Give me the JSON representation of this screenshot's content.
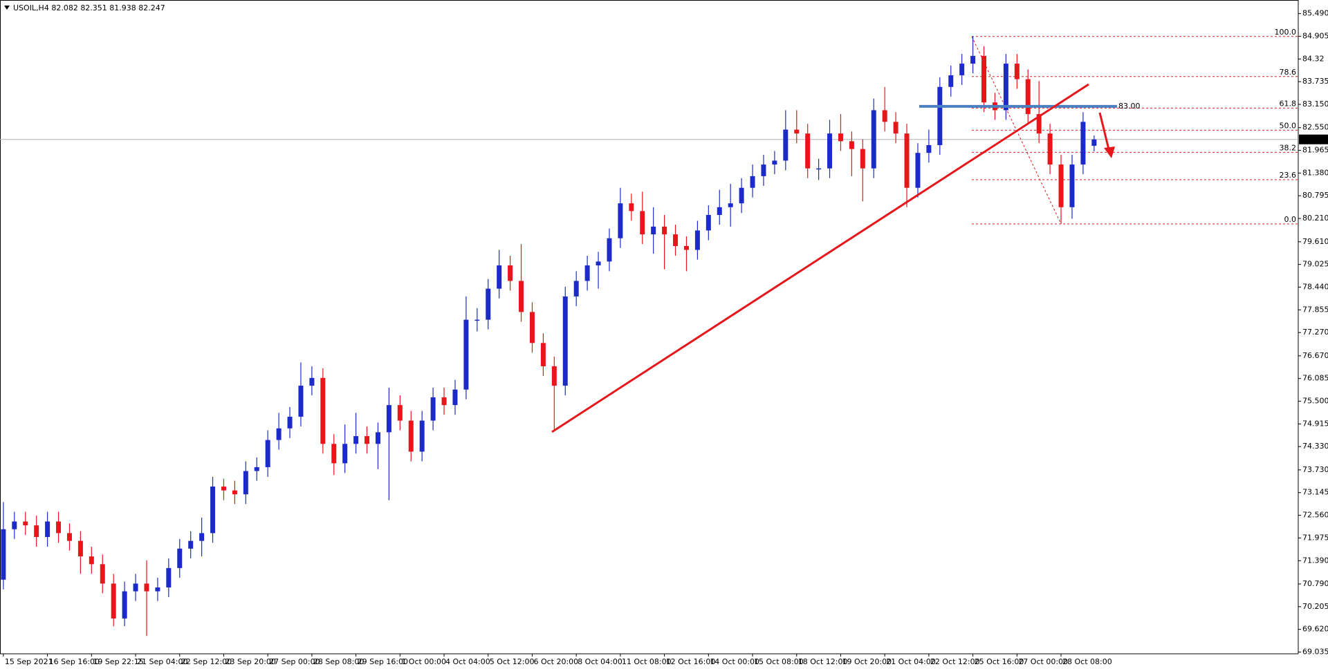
{
  "chart_data": {
    "type": "candlestick",
    "title": "USOIL,H4 82.082 82.351 81.938 82.247",
    "categories": [
      "15 Sep 2021",
      null,
      null,
      null,
      "16 Sep 16:00",
      null,
      null,
      null,
      "19 Sep 22:15",
      null,
      null,
      null,
      "21 Sep 04:00",
      null,
      null,
      null,
      "22 Sep 12:00",
      null,
      null,
      null,
      "23 Sep 20:00",
      null,
      null,
      null,
      "27 Sep 00:00",
      null,
      null,
      null,
      "28 Sep 08:00",
      null,
      null,
      null,
      "29 Sep 16:00",
      null,
      null,
      null,
      "1 Oct 00:00",
      null,
      null,
      null,
      "4 Oct 04:00",
      null,
      null,
      null,
      "5 Oct 12:00",
      null,
      null,
      null,
      "6 Oct 20:00",
      null,
      null,
      null,
      "8 Oct 04:00",
      null,
      null,
      null,
      "11 Oct 08:00",
      null,
      null,
      null,
      "12 Oct 16:00",
      null,
      null,
      null,
      "14 Oct 00:00",
      null,
      null,
      null,
      "15 Oct 08:00",
      null,
      null,
      null,
      "18 Oct 12:00",
      null,
      null,
      null,
      "19 Oct 20:00",
      null,
      null,
      null,
      "21 Oct 04:00",
      null,
      null,
      null,
      "22 Oct 12:00",
      null,
      null,
      null,
      "25 Oct 16:00",
      null,
      null,
      null,
      "27 Oct 00:00",
      null,
      null,
      null,
      "28 Oct 08:00",
      null,
      null,
      null
    ],
    "open": [
      70.9,
      72.2,
      72.4,
      72.3,
      72.0,
      72.4,
      72.1,
      71.9,
      71.5,
      71.3,
      70.8,
      69.9,
      70.6,
      70.8,
      70.6,
      70.7,
      71.2,
      71.7,
      71.9,
      72.1,
      73.3,
      73.2,
      73.1,
      73.7,
      73.8,
      74.5,
      74.8,
      75.1,
      75.9,
      76.1,
      74.4,
      73.9,
      74.4,
      74.6,
      74.4,
      74.7,
      75.4,
      75.0,
      74.2,
      75.0,
      75.6,
      75.4,
      75.8,
      77.6,
      77.6,
      78.4,
      79.0,
      78.6,
      77.8,
      77.0,
      76.4,
      75.9,
      78.2,
      78.6,
      79.0,
      79.1,
      79.7,
      80.6,
      80.4,
      79.8,
      80.0,
      79.8,
      79.5,
      79.4,
      79.9,
      80.3,
      80.5,
      80.6,
      81.0,
      81.3,
      81.6,
      81.7,
      82.5,
      82.4,
      81.5,
      81.5,
      82.4,
      82.2,
      82.0,
      81.5,
      83.0,
      82.7,
      82.4,
      81.0,
      81.9,
      82.1,
      83.6,
      83.9,
      84.2,
      84.4,
      83.2,
      83.0,
      84.2,
      83.8,
      82.9,
      82.4,
      81.6,
      80.5,
      81.6,
      82.082
    ],
    "high": [
      72.9,
      72.65,
      72.65,
      72.55,
      72.65,
      72.65,
      72.35,
      72.15,
      71.75,
      71.55,
      71.05,
      70.85,
      71.05,
      71.4,
      70.95,
      71.45,
      71.95,
      72.15,
      72.5,
      73.55,
      73.5,
      73.45,
      73.95,
      74.05,
      74.75,
      75.2,
      75.35,
      76.5,
      76.4,
      76.35,
      74.65,
      74.9,
      75.2,
      74.85,
      74.95,
      75.85,
      75.65,
      75.25,
      75.25,
      75.85,
      75.85,
      76.05,
      78.2,
      77.9,
      78.65,
      79.4,
      79.25,
      79.55,
      78.05,
      77.25,
      76.65,
      78.45,
      78.85,
      79.25,
      79.35,
      79.95,
      81.0,
      80.85,
      80.9,
      80.5,
      80.3,
      80.05,
      79.75,
      80.15,
      80.55,
      80.95,
      81.1,
      81.25,
      81.6,
      81.85,
      81.95,
      83.0,
      83.0,
      82.65,
      81.75,
      82.75,
      82.9,
      82.45,
      82.25,
      83.3,
      83.6,
      82.95,
      82.65,
      82.15,
      82.5,
      83.85,
      84.15,
      84.45,
      84.9,
      84.65,
      83.45,
      84.45,
      84.45,
      84.05,
      83.75,
      82.65,
      81.85,
      81.85,
      82.95,
      82.351
    ],
    "low": [
      70.65,
      71.95,
      72.05,
      71.75,
      71.75,
      71.85,
      71.65,
      71.05,
      71.05,
      70.55,
      69.7,
      69.7,
      70.35,
      69.45,
      70.35,
      70.45,
      70.95,
      71.45,
      71.5,
      71.85,
      72.95,
      72.85,
      72.85,
      73.45,
      73.55,
      74.25,
      74.55,
      74.85,
      75.65,
      74.15,
      73.6,
      73.65,
      74.15,
      74.15,
      73.75,
      72.95,
      74.75,
      73.95,
      73.95,
      74.75,
      75.15,
      75.15,
      75.55,
      77.3,
      77.35,
      78.15,
      78.35,
      77.55,
      76.75,
      76.15,
      74.77,
      75.65,
      77.95,
      78.35,
      78.4,
      78.85,
      79.45,
      80.15,
      79.55,
      79.3,
      78.9,
      79.25,
      78.85,
      79.15,
      79.65,
      80.05,
      80.0,
      80.35,
      80.75,
      81.05,
      81.35,
      81.45,
      82.15,
      81.25,
      81.2,
      81.25,
      81.95,
      81.3,
      80.65,
      81.25,
      82.45,
      82.15,
      80.5,
      80.75,
      81.65,
      81.85,
      83.35,
      83.65,
      83.95,
      82.95,
      82.75,
      82.75,
      83.55,
      82.65,
      82.15,
      81.35,
      80.07,
      80.2,
      81.35,
      81.938
    ],
    "close": [
      72.2,
      72.4,
      72.3,
      72.0,
      72.4,
      72.1,
      71.9,
      71.5,
      71.3,
      70.8,
      69.9,
      70.6,
      70.8,
      70.6,
      70.7,
      71.2,
      71.7,
      71.9,
      72.1,
      73.3,
      73.2,
      73.1,
      73.7,
      73.8,
      74.5,
      74.8,
      75.1,
      75.9,
      76.1,
      74.4,
      73.9,
      74.4,
      74.6,
      74.4,
      74.7,
      75.4,
      75.0,
      74.2,
      75.0,
      75.6,
      75.4,
      75.8,
      77.6,
      77.6,
      78.4,
      79.0,
      78.6,
      77.8,
      77.0,
      76.4,
      75.9,
      78.2,
      78.6,
      79.0,
      79.1,
      79.7,
      80.6,
      80.4,
      79.8,
      80.0,
      79.8,
      79.5,
      79.4,
      79.9,
      80.3,
      80.5,
      80.6,
      81.0,
      81.3,
      81.6,
      81.7,
      82.5,
      82.4,
      81.5,
      81.5,
      82.4,
      82.2,
      82.0,
      81.5,
      83.0,
      82.7,
      82.4,
      81.0,
      81.9,
      82.1,
      83.6,
      83.9,
      84.2,
      84.4,
      83.2,
      83.0,
      84.2,
      83.8,
      82.9,
      82.4,
      81.6,
      80.5,
      81.6,
      82.7,
      82.247
    ],
    "up_color": "#1c2bc8",
    "down_color": "#e8161b",
    "ylim": [
      68.99,
      85.84
    ],
    "yticks": [
      {
        "value": 85.49,
        "label": "85.490"
      },
      84.905,
      84.32,
      83.735,
      {
        "value": 83.15,
        "label": "83.150"
      },
      {
        "value": 82.55,
        "label": "82.550"
      },
      81.965,
      {
        "value": 81.38,
        "label": "81.380"
      },
      80.795,
      {
        "value": 80.21,
        "label": "80.210"
      },
      {
        "value": 79.61,
        "label": "79.610"
      },
      79.025,
      {
        "value": 78.44,
        "label": "78.440"
      },
      77.855,
      {
        "value": 77.27,
        "label": "77.270"
      },
      {
        "value": 76.67,
        "label": "76.670"
      },
      76.085,
      {
        "value": 75.5,
        "label": "75.500"
      },
      74.915,
      {
        "value": 74.33,
        "label": "74.330"
      },
      {
        "value": 73.73,
        "label": "73.730"
      },
      73.145,
      {
        "value": 72.56,
        "label": "72.560"
      },
      71.975,
      {
        "value": 71.39,
        "label": "71.390"
      },
      {
        "value": 70.79,
        "label": "70.790"
      },
      70.205,
      {
        "value": 69.62,
        "label": "69.620"
      },
      69.035
    ],
    "last": 82.247,
    "level_line": 83.1,
    "annotation": "83.00",
    "fib": {
      "high": 84.9,
      "low": 80.07,
      "color": "#e8161b",
      "levels": [
        {
          "value": 100,
          "label": "100.0"
        },
        78.6,
        61.8,
        {
          "value": 50,
          "label": "50.0"
        },
        38.2,
        23.6,
        {
          "value": 0,
          "label": "0.0"
        }
      ]
    }
  }
}
